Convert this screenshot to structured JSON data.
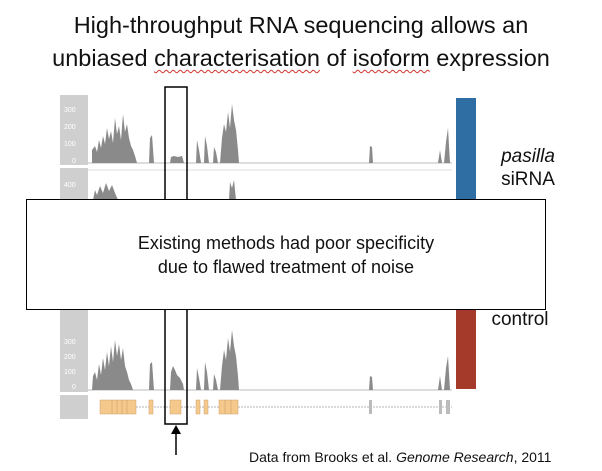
{
  "title": {
    "line1": "High-throughput RNA sequencing allows an",
    "line2_parts": [
      "unbiased ",
      "characterisation",
      " of ",
      "isoform",
      " expression"
    ]
  },
  "tracks": [
    {
      "ticks": [
        "300",
        "200",
        "100",
        "0"
      ]
    },
    {
      "ticks": [
        "400"
      ]
    },
    {
      "ticks": [
        "300",
        "200",
        "100",
        "0"
      ]
    }
  ],
  "conditions": {
    "pasilla_line1": "pasilla",
    "pasilla_line2": "siRNA",
    "control": "control"
  },
  "colors": {
    "pasilla_bar": "#2f6ea3",
    "control_bar": "#a53a2a",
    "exon": "#f5c98c",
    "coverage": "#8a8a8a",
    "tick_panel": "#cfcfcf"
  },
  "overlay": {
    "line1": "Existing methods had poor specificity",
    "line2": "due to flawed treatment of noise"
  },
  "citation": {
    "prefix": "Data from Brooks et al. ",
    "journal": "Genome Research",
    "suffix": ", 2011"
  }
}
